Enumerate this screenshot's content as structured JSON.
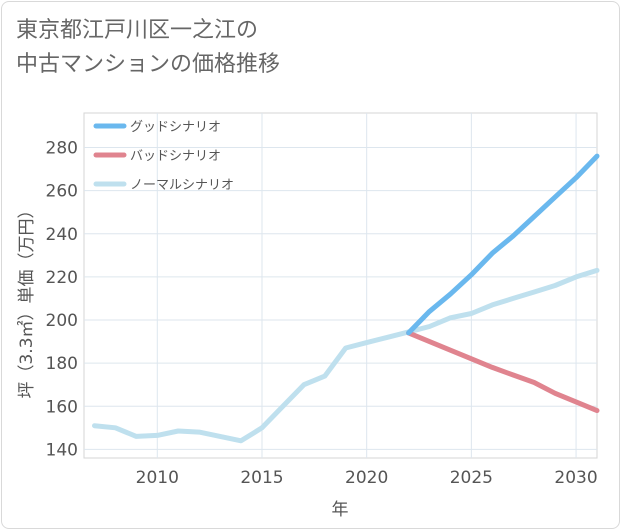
{
  "title_line1": "東京都江戸川区一之江の",
  "title_line2": "中古マンションの価格推移",
  "chart_data": {
    "type": "line",
    "xlabel": "年",
    "ylabel": "坪（3.3㎡）単価（万円）",
    "xlim": [
      2006.5,
      2031
    ],
    "ylim": [
      136,
      296
    ],
    "xticks": [
      2010,
      2015,
      2020,
      2025,
      2030
    ],
    "yticks": [
      140,
      160,
      180,
      200,
      220,
      240,
      260,
      280
    ],
    "grid": true,
    "legend_position": "top-left",
    "series": [
      {
        "name": "グッドシナリオ",
        "color": "#6ab8ee",
        "x": [
          2022,
          2023,
          2024,
          2025,
          2026,
          2027,
          2028,
          2029,
          2030,
          2031
        ],
        "y": [
          194,
          204,
          212,
          221,
          231,
          239,
          248,
          257,
          266,
          276
        ]
      },
      {
        "name": "バッドシナリオ",
        "color": "#e0848f",
        "x": [
          2022,
          2023,
          2024,
          2025,
          2026,
          2027,
          2028,
          2029,
          2030,
          2031
        ],
        "y": [
          194,
          190,
          186,
          182,
          178,
          174.5,
          171,
          166,
          162,
          158
        ]
      },
      {
        "name": "ノーマルシナリオ",
        "color": "#bfe0ee",
        "x": [
          2007,
          2008,
          2009,
          2010,
          2011,
          2012,
          2013,
          2014,
          2015,
          2016,
          2017,
          2018,
          2019,
          2020,
          2021,
          2022,
          2023,
          2024,
          2025,
          2026,
          2027,
          2028,
          2029,
          2030,
          2031
        ],
        "y": [
          151,
          150,
          146,
          146.5,
          148.5,
          148,
          146,
          144,
          150,
          160,
          170,
          174,
          187,
          189.5,
          192,
          194.5,
          197,
          201,
          203,
          207,
          210,
          213,
          216,
          220,
          223
        ]
      }
    ]
  }
}
